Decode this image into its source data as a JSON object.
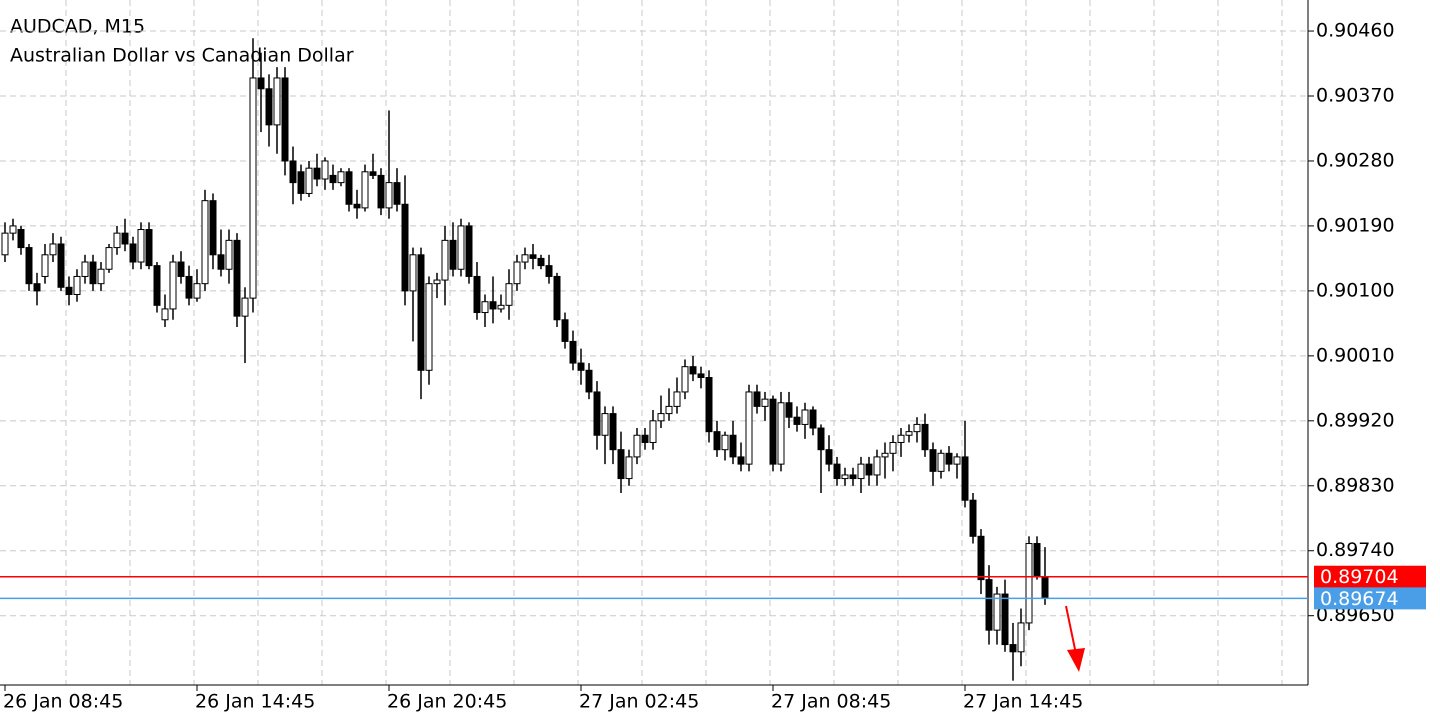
{
  "chart_data": {
    "type": "candlestick",
    "title": "AUDCAD, M15",
    "subtitle": "Australian Dollar vs Canadian Dollar",
    "categories": [
      "26 Jan 08:45",
      null,
      null,
      null,
      null,
      null,
      null,
      null,
      null,
      null,
      null,
      null,
      null,
      null,
      null,
      null,
      null,
      null,
      null,
      null,
      null,
      null,
      null,
      null,
      "26 Jan 14:45",
      null,
      null,
      null,
      null,
      null,
      null,
      null,
      null,
      null,
      null,
      null,
      null,
      null,
      null,
      null,
      null,
      null,
      null,
      null,
      null,
      null,
      null,
      null,
      "26 Jan 20:45",
      null,
      null,
      null,
      null,
      null,
      null,
      null,
      null,
      null,
      null,
      null,
      null,
      null,
      null,
      null,
      null,
      null,
      null,
      null,
      null,
      null,
      null,
      null,
      "27 Jan 02:45",
      null,
      null,
      null,
      null,
      null,
      null,
      null,
      null,
      null,
      null,
      null,
      null,
      null,
      null,
      null,
      null,
      null,
      null,
      null,
      null,
      null,
      null,
      null,
      "27 Jan 08:45",
      null,
      null,
      null,
      null,
      null,
      null,
      null,
      null,
      null,
      null,
      null,
      null,
      null,
      null,
      null,
      null,
      null,
      null,
      null,
      null,
      null,
      null,
      null,
      "27 Jan 14:45",
      null,
      null,
      null,
      null,
      null,
      null,
      null,
      null,
      null,
      null
    ],
    "ohlc": [
      [
        0.9015,
        0.90195,
        0.9014,
        0.9018
      ],
      [
        0.9018,
        0.902,
        0.9017,
        0.9019
      ],
      [
        0.90185,
        0.9019,
        0.9015,
        0.9016
      ],
      [
        0.9016,
        0.90165,
        0.901,
        0.9011
      ],
      [
        0.9011,
        0.90125,
        0.9008,
        0.901
      ],
      [
        0.9012,
        0.90165,
        0.9011,
        0.9015
      ],
      [
        0.9015,
        0.9018,
        0.9014,
        0.90165
      ],
      [
        0.90165,
        0.90175,
        0.901,
        0.90105
      ],
      [
        0.90105,
        0.9012,
        0.9008,
        0.90095
      ],
      [
        0.90095,
        0.9013,
        0.90085,
        0.9012
      ],
      [
        0.9012,
        0.9015,
        0.9011,
        0.9014
      ],
      [
        0.9014,
        0.9015,
        0.901,
        0.9011
      ],
      [
        0.9011,
        0.9014,
        0.901,
        0.9013
      ],
      [
        0.9013,
        0.90165,
        0.90125,
        0.9016
      ],
      [
        0.9016,
        0.9019,
        0.9015,
        0.9018
      ],
      [
        0.9018,
        0.902,
        0.90155,
        0.90165
      ],
      [
        0.90165,
        0.90175,
        0.9013,
        0.9014
      ],
      [
        0.9014,
        0.90195,
        0.9013,
        0.90185
      ],
      [
        0.90185,
        0.90195,
        0.9013,
        0.90135
      ],
      [
        0.90135,
        0.9014,
        0.9007,
        0.9008
      ],
      [
        0.9006,
        0.90095,
        0.9005,
        0.90075
      ],
      [
        0.90075,
        0.9015,
        0.9006,
        0.9014
      ],
      [
        0.9014,
        0.90155,
        0.9011,
        0.9012
      ],
      [
        0.9012,
        0.90135,
        0.9008,
        0.9009
      ],
      [
        0.9009,
        0.9013,
        0.90085,
        0.9011
      ],
      [
        0.9011,
        0.9024,
        0.901,
        0.90225
      ],
      [
        0.90225,
        0.90235,
        0.9013,
        0.9015
      ],
      [
        0.9015,
        0.90185,
        0.9012,
        0.9013
      ],
      [
        0.9013,
        0.90185,
        0.9011,
        0.9017
      ],
      [
        0.9017,
        0.9018,
        0.9005,
        0.90065
      ],
      [
        0.90065,
        0.90105,
        0.9,
        0.9009
      ],
      [
        0.9009,
        0.9045,
        0.9007,
        0.90395
      ],
      [
        0.90395,
        0.9043,
        0.9032,
        0.9038
      ],
      [
        0.9038,
        0.904,
        0.903,
        0.9033
      ],
      [
        0.9033,
        0.9041,
        0.9029,
        0.90395
      ],
      [
        0.90395,
        0.9041,
        0.9026,
        0.9028
      ],
      [
        0.9028,
        0.903,
        0.9022,
        0.9025
      ],
      [
        0.90265,
        0.90275,
        0.90225,
        0.90235
      ],
      [
        0.90235,
        0.9028,
        0.9023,
        0.9027
      ],
      [
        0.9027,
        0.9029,
        0.90245,
        0.90255
      ],
      [
        0.90255,
        0.90285,
        0.9024,
        0.9028
      ],
      [
        0.9026,
        0.90275,
        0.9024,
        0.9025
      ],
      [
        0.9025,
        0.9027,
        0.90245,
        0.90265
      ],
      [
        0.90265,
        0.9027,
        0.9021,
        0.9022
      ],
      [
        0.9022,
        0.9024,
        0.902,
        0.90215
      ],
      [
        0.90215,
        0.90275,
        0.9021,
        0.90265
      ],
      [
        0.90265,
        0.9029,
        0.90255,
        0.9026
      ],
      [
        0.9026,
        0.9027,
        0.90205,
        0.90215
      ],
      [
        0.90215,
        0.9035,
        0.902,
        0.9025
      ],
      [
        0.9025,
        0.9027,
        0.9021,
        0.9022
      ],
      [
        0.9022,
        0.9026,
        0.9008,
        0.901
      ],
      [
        0.901,
        0.9016,
        0.9003,
        0.9015
      ],
      [
        0.9015,
        0.9016,
        0.8995,
        0.8999
      ],
      [
        0.8999,
        0.9012,
        0.8997,
        0.9011
      ],
      [
        0.9011,
        0.90125,
        0.9009,
        0.90115
      ],
      [
        0.90115,
        0.9019,
        0.9008,
        0.9017
      ],
      [
        0.9017,
        0.90195,
        0.9012,
        0.9013
      ],
      [
        0.9013,
        0.902,
        0.9012,
        0.9019
      ],
      [
        0.9019,
        0.90195,
        0.9011,
        0.9012
      ],
      [
        0.9012,
        0.9014,
        0.9006,
        0.9007
      ],
      [
        0.9007,
        0.90095,
        0.9005,
        0.90085
      ],
      [
        0.90085,
        0.9012,
        0.90055,
        0.90075
      ],
      [
        0.90075,
        0.90095,
        0.9007,
        0.9008
      ],
      [
        0.9008,
        0.9013,
        0.9006,
        0.9011
      ],
      [
        0.9011,
        0.9015,
        0.901,
        0.9014
      ],
      [
        0.9014,
        0.9016,
        0.9013,
        0.9015
      ],
      [
        0.9015,
        0.90165,
        0.9013,
        0.90145
      ],
      [
        0.90145,
        0.9015,
        0.9013,
        0.90135
      ],
      [
        0.90135,
        0.9015,
        0.9011,
        0.9012
      ],
      [
        0.9012,
        0.90125,
        0.9005,
        0.9006
      ],
      [
        0.9006,
        0.9007,
        0.9002,
        0.9003
      ],
      [
        0.9003,
        0.90045,
        0.8999,
        0.9
      ],
      [
        0.9,
        0.9002,
        0.8997,
        0.8999
      ],
      [
        0.8999,
        0.9,
        0.8995,
        0.8996
      ],
      [
        0.8996,
        0.89975,
        0.8988,
        0.899
      ],
      [
        0.899,
        0.8994,
        0.8986,
        0.8993
      ],
      [
        0.8993,
        0.8994,
        0.8986,
        0.8988
      ],
      [
        0.8988,
        0.89905,
        0.8982,
        0.8984
      ],
      [
        0.8984,
        0.8988,
        0.8983,
        0.8987
      ],
      [
        0.8987,
        0.8991,
        0.8986,
        0.899
      ],
      [
        0.899,
        0.8991,
        0.8988,
        0.8989
      ],
      [
        0.8989,
        0.89935,
        0.8988,
        0.8992
      ],
      [
        0.8992,
        0.89955,
        0.8991,
        0.8993
      ],
      [
        0.8993,
        0.89965,
        0.8992,
        0.8994
      ],
      [
        0.8994,
        0.8998,
        0.8993,
        0.8996
      ],
      [
        0.8996,
        0.90005,
        0.8995,
        0.89995
      ],
      [
        0.89995,
        0.9001,
        0.89975,
        0.89985
      ],
      [
        0.89985,
        0.89995,
        0.89965,
        0.8998
      ],
      [
        0.8998,
        0.8999,
        0.8989,
        0.89905
      ],
      [
        0.89905,
        0.8992,
        0.8987,
        0.8988
      ],
      [
        0.8988,
        0.89905,
        0.89865,
        0.899
      ],
      [
        0.899,
        0.8992,
        0.8986,
        0.8987
      ],
      [
        0.8987,
        0.8989,
        0.8985,
        0.8986
      ],
      [
        0.8986,
        0.8997,
        0.8985,
        0.8996
      ],
      [
        0.8996,
        0.8997,
        0.8993,
        0.8994
      ],
      [
        0.8994,
        0.8996,
        0.8992,
        0.8995
      ],
      [
        0.8995,
        0.89955,
        0.8985,
        0.8986
      ],
      [
        0.8986,
        0.8996,
        0.8985,
        0.89945
      ],
      [
        0.89945,
        0.8996,
        0.8991,
        0.89925
      ],
      [
        0.89925,
        0.8994,
        0.89905,
        0.89915
      ],
      [
        0.89915,
        0.89945,
        0.89895,
        0.89935
      ],
      [
        0.89935,
        0.8994,
        0.899,
        0.8991
      ],
      [
        0.8991,
        0.89915,
        0.8982,
        0.8988
      ],
      [
        0.8988,
        0.899,
        0.8985,
        0.8986
      ],
      [
        0.8986,
        0.8987,
        0.8983,
        0.8984
      ],
      [
        0.8984,
        0.89855,
        0.8983,
        0.89845
      ],
      [
        0.89845,
        0.89855,
        0.8983,
        0.8984
      ],
      [
        0.8984,
        0.8987,
        0.8982,
        0.8986
      ],
      [
        0.8986,
        0.8987,
        0.8983,
        0.89845
      ],
      [
        0.89845,
        0.8988,
        0.8983,
        0.8987
      ],
      [
        0.8987,
        0.8989,
        0.8984,
        0.89875
      ],
      [
        0.89875,
        0.899,
        0.8985,
        0.8989
      ],
      [
        0.8989,
        0.8991,
        0.8987,
        0.899
      ],
      [
        0.899,
        0.89915,
        0.8989,
        0.89905
      ],
      [
        0.89905,
        0.89925,
        0.8989,
        0.89915
      ],
      [
        0.89915,
        0.8993,
        0.8987,
        0.8988
      ],
      [
        0.8988,
        0.8989,
        0.8983,
        0.8985
      ],
      [
        0.8985,
        0.8988,
        0.8984,
        0.89875
      ],
      [
        0.89875,
        0.89885,
        0.8985,
        0.8986
      ],
      [
        0.8986,
        0.89875,
        0.8984,
        0.8987
      ],
      [
        0.8987,
        0.8992,
        0.898,
        0.8981
      ],
      [
        0.8981,
        0.8982,
        0.8975,
        0.8976
      ],
      [
        0.8976,
        0.8977,
        0.8968,
        0.897
      ],
      [
        0.897,
        0.8972,
        0.8961,
        0.8963
      ],
      [
        0.8963,
        0.8969,
        0.8961,
        0.8968
      ],
      [
        0.8968,
        0.897,
        0.896,
        0.8961
      ],
      [
        0.8961,
        0.8964,
        0.8956,
        0.896
      ],
      [
        0.896,
        0.8966,
        0.8958,
        0.8964
      ],
      [
        0.8964,
        0.8976,
        0.8963,
        0.8975
      ],
      [
        0.8975,
        0.8976,
        0.897,
        0.89704
      ],
      [
        0.89704,
        0.89745,
        0.89665,
        0.89674
      ]
    ],
    "up_color": "#ffffff",
    "down_color": "#000000",
    "ylim": [
      0.89554,
      0.90503
    ],
    "yticks": [
      {
        "value": 0.9046,
        "label": "0.90460"
      },
      {
        "value": 0.9037,
        "label": "0.90370"
      },
      {
        "value": 0.9028,
        "label": "0.90280"
      },
      {
        "value": 0.9019,
        "label": "0.90190"
      },
      {
        "value": 0.901,
        "label": "0.90100"
      },
      {
        "value": 0.9001,
        "label": "0.90010"
      },
      {
        "value": 0.8992,
        "label": "0.89920"
      },
      {
        "value": 0.8983,
        "label": "0.89830"
      },
      {
        "value": 0.8974,
        "label": "0.89740"
      },
      {
        "value": 0.8965,
        "label": "0.89650"
      }
    ],
    "grid": true,
    "price_lines": [
      {
        "value": 0.89704,
        "color": "#ff0000"
      },
      {
        "value": 0.89674,
        "color": "#4a9ee8"
      }
    ]
  }
}
